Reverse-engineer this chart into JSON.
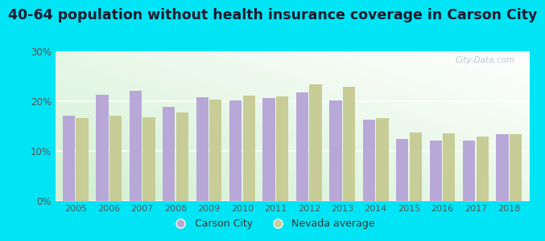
{
  "title": "40-64 population without health insurance coverage in Carson City",
  "years": [
    2005,
    2006,
    2007,
    2008,
    2009,
    2010,
    2011,
    2012,
    2013,
    2014,
    2015,
    2016,
    2017,
    2018
  ],
  "carson_city": [
    17.0,
    21.3,
    22.1,
    18.8,
    20.8,
    20.1,
    20.6,
    21.8,
    20.1,
    16.2,
    12.3,
    12.1,
    12.0,
    13.4
  ],
  "nevada_avg": [
    16.5,
    17.0,
    16.8,
    17.7,
    20.3,
    21.1,
    20.9,
    23.3,
    22.8,
    16.5,
    13.7,
    13.5,
    12.9,
    13.4
  ],
  "bar_color_carson": "#b8a8d8",
  "bar_color_nevada": "#c8cc96",
  "background_outer": "#00e5f5",
  "ylim": [
    0,
    30
  ],
  "yticks": [
    0,
    10,
    20,
    30
  ],
  "ytick_labels": [
    "0%",
    "10%",
    "20%",
    "30%"
  ],
  "title_fontsize": 12.5,
  "legend_labels": [
    "Carson City",
    "Nevada average"
  ],
  "watermark": "City-Data.com"
}
